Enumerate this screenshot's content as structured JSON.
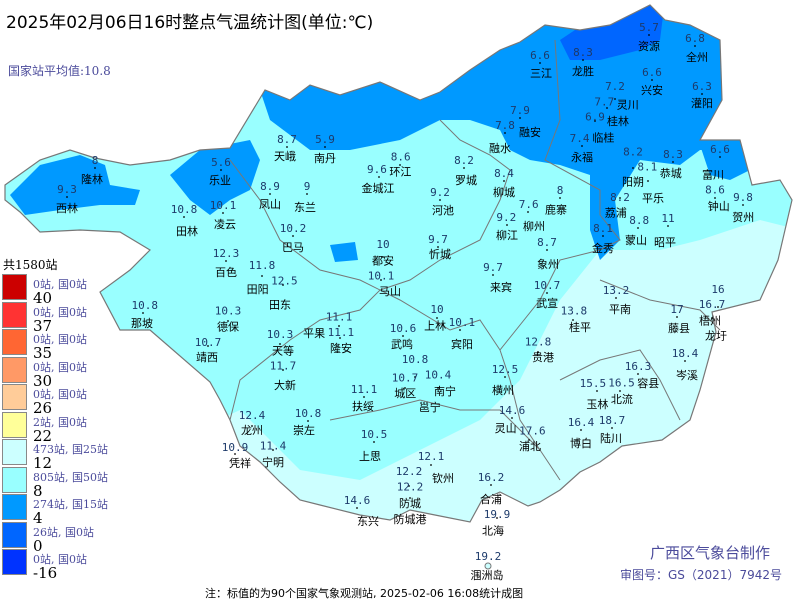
{
  "title": "2025年02月06日16时整点气温统计图(单位:℃)",
  "national_average": "国家站平均值:10.8",
  "total_stations": "共1580站",
  "legend": [
    {
      "color": "#cc0000",
      "count": "0站, 国0站",
      "threshold": "40"
    },
    {
      "color": "#ff3333",
      "count": "0站, 国0站",
      "threshold": "37"
    },
    {
      "color": "#ff6633",
      "count": "0站, 国0站",
      "threshold": "35"
    },
    {
      "color": "#ff9966",
      "count": "0站, 国0站",
      "threshold": "30"
    },
    {
      "color": "#ffcc99",
      "count": "0站, 国0站",
      "threshold": "26"
    },
    {
      "color": "#ffff99",
      "count": "2站, 国0站",
      "threshold": "22"
    },
    {
      "color": "#ccffff",
      "count": "473站, 国25站",
      "threshold": "12"
    },
    {
      "color": "#99ffff",
      "count": "805站, 国50站",
      "threshold": "8"
    },
    {
      "color": "#0099ff",
      "count": "274站, 国15站",
      "threshold": "4"
    },
    {
      "color": "#0066ff",
      "count": "26站, 国0站",
      "threshold": "0"
    },
    {
      "color": "#0033ff",
      "count": "0站, 国0站",
      "threshold": "-16"
    }
  ],
  "stations": [
    {
      "n": "资源",
      "v": "5.7"
    },
    {
      "n": "全州",
      "v": "6.8"
    },
    {
      "n": "三江",
      "v": "6.6"
    },
    {
      "n": "龙胜",
      "v": "8.3"
    },
    {
      "n": "兴安",
      "v": "6.6"
    },
    {
      "n": "灌阳",
      "v": "6.3"
    },
    {
      "n": "灵川",
      "v": "7.2"
    },
    {
      "n": "桂林",
      "v": "7.7"
    },
    {
      "n": "临桂",
      "v": "6.9"
    },
    {
      "n": "融安",
      "v": "7.9"
    },
    {
      "n": "融水",
      "v": "7.8"
    },
    {
      "n": "永福",
      "v": "7.4"
    },
    {
      "n": "阳朔",
      "v": "8.2"
    },
    {
      "n": "恭城",
      "v": "8.3"
    },
    {
      "n": "平乐",
      "v": "8.1"
    },
    {
      "n": "荔浦",
      "v": "8.2"
    },
    {
      "n": "富川",
      "v": "6.6"
    },
    {
      "n": "钟山",
      "v": "8.6"
    },
    {
      "n": "贺州",
      "v": "9.8"
    },
    {
      "n": "昭平",
      "v": "11"
    },
    {
      "n": "蒙山",
      "v": "8.8"
    },
    {
      "n": "金秀",
      "v": "8.1"
    },
    {
      "n": "鹿寨",
      "v": "8"
    },
    {
      "n": "柳城",
      "v": "8.4"
    },
    {
      "n": "柳州",
      "v": "7.6"
    },
    {
      "n": "柳江",
      "v": "9.2"
    },
    {
      "n": "罗城",
      "v": "8.2"
    },
    {
      "n": "河池",
      "v": "9.2"
    },
    {
      "n": "环江",
      "v": "8.6"
    },
    {
      "n": "金城江",
      "v": "9.6"
    },
    {
      "n": "南丹",
      "v": "5.9"
    },
    {
      "n": "天峨",
      "v": "8.7"
    },
    {
      "n": "乐业",
      "v": "5.6"
    },
    {
      "n": "隆林",
      "v": "8"
    },
    {
      "n": "西林",
      "v": "9.3"
    },
    {
      "n": "凤山",
      "v": "8.9"
    },
    {
      "n": "东兰",
      "v": "9"
    },
    {
      "n": "田林",
      "v": "10.8"
    },
    {
      "n": "凌云",
      "v": "10.1"
    },
    {
      "n": "巴马",
      "v": "10.2"
    },
    {
      "n": "都安",
      "v": "10"
    },
    {
      "n": "忻城",
      "v": "9.7"
    },
    {
      "n": "马山",
      "v": "10.1"
    },
    {
      "n": "来宾",
      "v": "9.7"
    },
    {
      "n": "象州",
      "v": "8.7"
    },
    {
      "n": "武宣",
      "v": "10.7"
    },
    {
      "n": "百色",
      "v": "12.3"
    },
    {
      "n": "田阳",
      "v": "11.8"
    },
    {
      "n": "田东",
      "v": "12.5"
    },
    {
      "n": "那坡",
      "v": "10.8"
    },
    {
      "n": "德保",
      "v": "10.3"
    },
    {
      "n": "靖西",
      "v": "10.7"
    },
    {
      "n": "天等",
      "v": "10.3"
    },
    {
      "n": "平果",
      "v": "11.1"
    },
    {
      "n": "隆安",
      "v": "11.1"
    },
    {
      "n": "大新",
      "v": "11.7"
    },
    {
      "n": "武鸣",
      "v": "10.6"
    },
    {
      "n": "上林",
      "v": "10"
    },
    {
      "n": "宾阳",
      "v": "10.1"
    },
    {
      "n": "贵港",
      "v": "12.8"
    },
    {
      "n": "桂平",
      "v": "13.8"
    },
    {
      "n": "平南",
      "v": "13.2"
    },
    {
      "n": "藤县",
      "v": "17"
    },
    {
      "n": "梧州",
      "v": "16"
    },
    {
      "n": "龙圩",
      "v": "16.7"
    },
    {
      "n": "岑溪",
      "v": "18.4"
    },
    {
      "n": "容县",
      "v": "16.3"
    },
    {
      "n": "北流",
      "v": "16.5"
    },
    {
      "n": "玉林",
      "v": "15.5"
    },
    {
      "n": "陆川",
      "v": "18.7"
    },
    {
      "n": "博白",
      "v": "16.4"
    },
    {
      "n": "浦北",
      "v": "17.6"
    },
    {
      "n": "灵山",
      "v": "14.6"
    },
    {
      "n": "横州",
      "v": "12.5"
    },
    {
      "n": "城区",
      "v": "10.8"
    },
    {
      "n": "邕宁",
      "v": "10.7"
    },
    {
      "n": "南宁",
      "v": "10.4"
    },
    {
      "n": "扶绥",
      "v": "11.1"
    },
    {
      "n": "崇左",
      "v": "10.8"
    },
    {
      "n": "龙州",
      "v": "12.4"
    },
    {
      "n": "凭祥",
      "v": "10.9"
    },
    {
      "n": "宁明",
      "v": "11.4"
    },
    {
      "n": "上思",
      "v": "10.5"
    },
    {
      "n": "钦州",
      "v": "12.1"
    },
    {
      "n": "防城",
      "v": "12.2"
    },
    {
      "n": "防城港",
      "v": "12.2"
    },
    {
      "n": "东兴",
      "v": "14.6"
    },
    {
      "n": "合浦",
      "v": "16.2"
    },
    {
      "n": "北海",
      "v": "19.9"
    },
    {
      "n": "涠洲岛",
      "v": "19.2"
    }
  ],
  "maker": "广西区气象台制作",
  "approval": "审图号：GS（2021）7942号",
  "note": "注：标值的为90个国家气象观测站, 2025-02-06 16:08统计成图"
}
